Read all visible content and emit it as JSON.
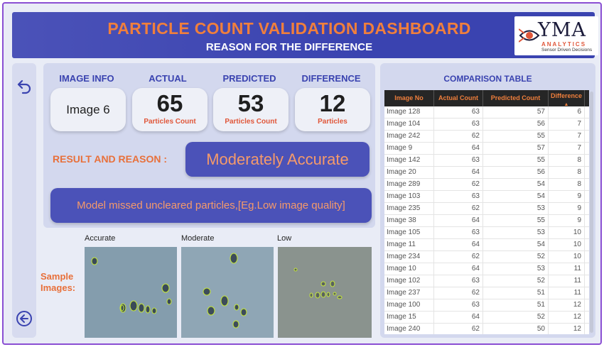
{
  "header": {
    "title": "PARTICLE COUNT VALIDATION DASHBOARD",
    "subtitle": "REASON FOR THE DIFFERENCE",
    "logo": {
      "brand": "YMA",
      "analytics": "ANALYTICS",
      "tagline": "Sensor Driven Decisions"
    }
  },
  "nav": {
    "back_icon": "undo-arrow-icon",
    "prev_icon": "circle-left-arrow-icon"
  },
  "summary": {
    "labels": {
      "image_info": "IMAGE INFO",
      "actual": "ACTUAL",
      "predicted": "PREDICTED",
      "difference": "DIFFERENCE"
    },
    "image_name": "Image 6",
    "actual_value": "65",
    "actual_unit": "Particles Count",
    "predicted_value": "53",
    "predicted_unit": "Particles Count",
    "difference_value": "12",
    "difference_unit": "Particles"
  },
  "result": {
    "label": "RESULT AND REASON :",
    "value": "Moderately Accurate",
    "reason": "Model missed uncleared particles,[Eg.Low image quality]"
  },
  "samples": {
    "label": "Sample Images:",
    "captions": [
      "Accurate",
      "Moderate",
      "Low"
    ]
  },
  "comparison": {
    "title": "COMPARISON TABLE",
    "columns": [
      "Image No",
      "Actual Count",
      "Predicted Count",
      "Difference"
    ],
    "sort_icon": "sort-ascending-icon",
    "rows": [
      [
        "Image 128",
        "63",
        "57",
        "6"
      ],
      [
        "Image 104",
        "63",
        "56",
        "7"
      ],
      [
        "Image 242",
        "62",
        "55",
        "7"
      ],
      [
        "Image 9",
        "64",
        "57",
        "7"
      ],
      [
        "Image 142",
        "63",
        "55",
        "8"
      ],
      [
        "Image 20",
        "64",
        "56",
        "8"
      ],
      [
        "Image 289",
        "62",
        "54",
        "8"
      ],
      [
        "Image 103",
        "63",
        "54",
        "9"
      ],
      [
        "Image 235",
        "62",
        "53",
        "9"
      ],
      [
        "Image 38",
        "64",
        "55",
        "9"
      ],
      [
        "Image 105",
        "63",
        "53",
        "10"
      ],
      [
        "Image 11",
        "64",
        "54",
        "10"
      ],
      [
        "Image 234",
        "62",
        "52",
        "10"
      ],
      [
        "Image 10",
        "64",
        "53",
        "11"
      ],
      [
        "Image 102",
        "63",
        "52",
        "11"
      ],
      [
        "Image 237",
        "62",
        "51",
        "11"
      ],
      [
        "Image 100",
        "63",
        "51",
        "12"
      ],
      [
        "Image 15",
        "64",
        "52",
        "12"
      ],
      [
        "Image 240",
        "62",
        "50",
        "12"
      ]
    ]
  },
  "colors": {
    "accent": "#3a43b0",
    "orange": "#e8703a",
    "panel": "#d3d8ee"
  }
}
